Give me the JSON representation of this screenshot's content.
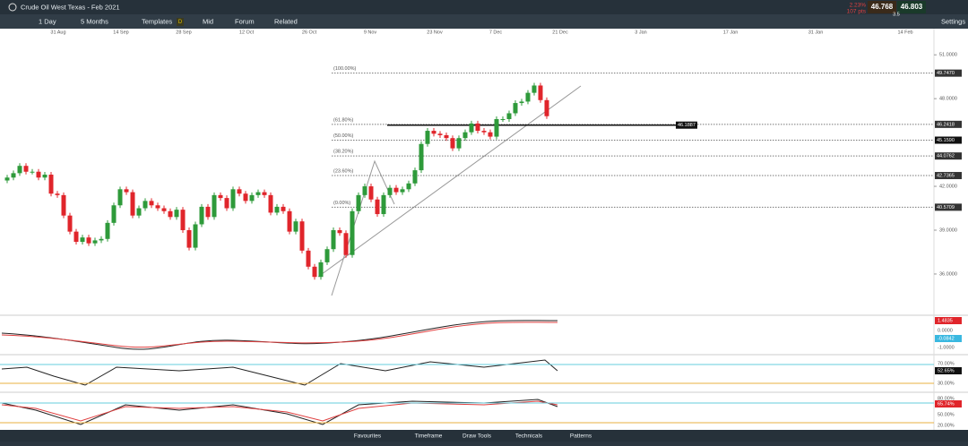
{
  "toolbar": {
    "title": "Crude Oil West Texas - Feb 2021",
    "interval": "1 Day",
    "range": "5 Months",
    "templates": "Templates",
    "badge": "D",
    "mid": "Mid",
    "forum": "Forum",
    "related": "Related",
    "settings": "Settings"
  },
  "quote": {
    "change": "2.23%",
    "points": "107 pts",
    "sell": "46.768",
    "buy": "46.803",
    "spread": "3.5"
  },
  "chart": {
    "dates": [
      "31 Aug",
      "14 Sep",
      "28 Sep",
      "12 Oct",
      "26 Oct",
      "9 Nov",
      "23 Nov",
      "7 Dec",
      "21 Dec",
      "3 Jan",
      "17 Jan",
      "31 Jan",
      "14 Feb"
    ],
    "ylim": [
      33.3,
      52.3
    ],
    "yticks": [
      {
        "value": 51,
        "label": "51.0000"
      },
      {
        "value": 48,
        "label": "48.0000"
      },
      {
        "value": 42,
        "label": "42.0000"
      },
      {
        "value": 39,
        "label": "39.0000"
      },
      {
        "value": 36,
        "label": "36.0000"
      }
    ],
    "open": [
      42.4,
      42.6,
      42.9,
      43.4,
      43.0,
      43.0,
      42.6,
      42.8,
      41.5,
      41.4,
      40.0,
      38.9,
      38.2,
      38.5,
      38.1,
      38.3,
      38.4,
      39.5,
      40.7,
      41.8,
      41.6,
      40.0,
      40.5,
      41.0,
      40.7,
      40.5,
      40.3,
      39.9,
      40.4,
      39.0,
      37.8,
      39.4,
      40.6,
      39.9,
      41.4,
      41.2,
      40.5,
      41.8,
      41.5,
      41.0,
      41.4,
      41.6,
      41.4,
      40.2,
      40.6,
      40.3,
      38.9,
      39.6,
      37.6,
      36.5,
      35.8,
      36.8,
      37.7,
      39.0,
      38.8,
      37.3,
      40.3,
      41.4,
      42.0,
      41.1,
      40.1,
      41.4,
      41.9,
      41.6,
      41.8,
      42.2,
      43.1,
      44.9,
      45.8,
      45.6,
      45.5,
      45.3,
      44.6,
      45.3,
      45.7,
      46.3,
      45.8,
      45.7,
      45.4,
      46.6,
      46.6,
      47.0,
      47.7,
      47.8,
      48.4,
      48.9,
      47.9
    ],
    "close": [
      42.6,
      42.9,
      43.4,
      43.0,
      43.0,
      42.6,
      42.8,
      41.5,
      41.4,
      40.0,
      38.9,
      38.2,
      38.5,
      38.1,
      38.3,
      38.4,
      39.5,
      40.7,
      41.8,
      41.6,
      40.0,
      40.5,
      41.0,
      40.7,
      40.5,
      40.3,
      39.9,
      40.4,
      39.0,
      37.8,
      39.4,
      40.6,
      39.9,
      41.4,
      41.2,
      40.5,
      41.8,
      41.5,
      41.0,
      41.4,
      41.6,
      41.4,
      40.2,
      40.6,
      40.3,
      38.9,
      39.6,
      37.6,
      36.5,
      35.8,
      36.8,
      37.7,
      39.0,
      38.8,
      37.3,
      40.3,
      41.4,
      42.0,
      41.1,
      40.1,
      41.4,
      41.9,
      41.6,
      41.8,
      42.2,
      43.1,
      44.9,
      45.8,
      45.6,
      45.5,
      45.3,
      44.6,
      45.3,
      45.7,
      46.3,
      45.8,
      45.7,
      45.4,
      46.6,
      46.6,
      47.0,
      47.7,
      47.8,
      48.4,
      48.9,
      47.9,
      46.8
    ],
    "fib": [
      {
        "name": "(100.00%)",
        "value": 49.747,
        "label": "49.7470"
      },
      {
        "name": "(61.80%)",
        "value": 46.2418,
        "label": "46.2418"
      },
      {
        "name": "(50.00%)",
        "value": 45.159,
        "label": "45.1590"
      },
      {
        "name": "(38.20%)",
        "value": 44.0762,
        "label": "44.0762"
      },
      {
        "name": "(23.60%)",
        "value": 42.7365,
        "label": "42.7365"
      },
      {
        "name": "(0.00%)",
        "value": 40.5709,
        "label": "40.5709"
      }
    ],
    "hline": {
      "value": 46.1887,
      "label": "46.1887"
    }
  },
  "indicators": {
    "macd": [
      "1.4835",
      "0.0000",
      "-0.0842",
      "-1.0000"
    ],
    "rsi": [
      "70.00%",
      "52.65%",
      "30.00%"
    ],
    "stoch": [
      "80.00%",
      "65.74%",
      "50.00%",
      "20.00%"
    ]
  },
  "footer": {
    "tabs": [
      "Favourites",
      "Timeframe",
      "Draw Tools",
      "Technicals",
      "Patterns"
    ]
  }
}
